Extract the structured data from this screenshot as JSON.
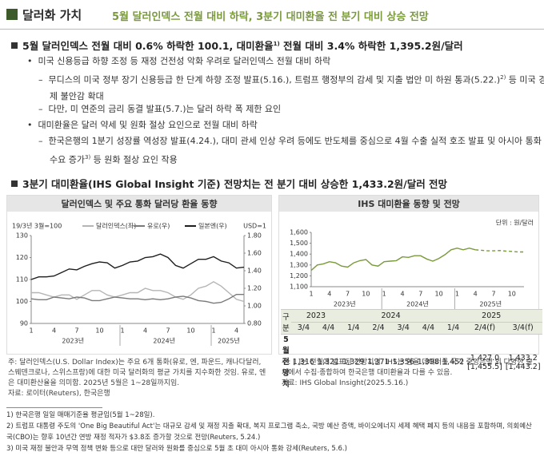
{
  "header": {
    "section": "달러화 가치",
    "title": "5월 달러인덱스 전월 대비 하락, 3분기 대미환율 전 분기 대비 상승 전망"
  },
  "body": {
    "heading1": {
      "text": "5월 달러인덱스 전월 대비 0.6% 하락한 100.1, 대미환율",
      "note": "1)",
      "rest": " 전월 대비 3.4% 하락한 1,395.2원/달러"
    },
    "bullets": [
      {
        "text": "미국 신용등급 하향 조정 등 재정 건전성 악화 우려로 달러인덱스 전월 대비 하락",
        "subs": [
          {
            "text": "무디스의 미국 정부 장기 신용등급 한 단계 하향 조정 발표(5.16.), 트럼프 행정부의 감세 및 지출 법안 미 하원 통과(5.22.)",
            "note": "2)",
            "rest": " 등 미국 경제 불안감 확대"
          },
          {
            "text": "다만, 미 연준의 금리 동결 발표(5.7.)는 달러 하락 폭 제한 요인"
          }
        ]
      },
      {
        "text": "대미환율은 달러 약세 및 원화 절상 요인으로 전월 대비 하락",
        "subs": [
          {
            "text": "한국은행의 1분기 성장률 역성장 발표(4.24.), 대미 관세 인상 우려 등에도 반도체를 중심으로 4월 수출 실적 호조 발표 및 아시아 통화 수요 증가",
            "note": "3)",
            "rest": " 등 원화 절상 요인 작용"
          }
        ]
      }
    ],
    "heading2": "3분기 대미환율(IHS Global Insight 기준) 전망치는 전 분기 대비 상승한 1,433.2원/달러 전망"
  },
  "chart_data": [
    {
      "type": "line",
      "title": "달러인덱스 및 주요 통화 달러당 환율 동향",
      "index_note": "19/3년 3월=100",
      "unit_note": "USD=1",
      "categories": [
        "1",
        null,
        null,
        "4",
        null,
        null,
        "7",
        null,
        null,
        "10",
        null,
        null,
        "1",
        null,
        null,
        "4",
        null,
        null,
        "7",
        null,
        null,
        "10",
        null,
        null,
        "1",
        null,
        null,
        "4",
        null
      ],
      "year_labels": [
        "2023년",
        "2024년",
        "2025년"
      ],
      "ylim": [
        90,
        130
      ],
      "yticks": [
        90,
        100,
        110,
        120,
        130
      ],
      "y2lim": [
        0.8,
        1.8
      ],
      "y2ticks": [
        {
          "value": 0.8,
          "label": "0.80"
        },
        {
          "value": 1.0,
          "label": "1.00"
        },
        {
          "value": 1.2,
          "label": "1.20"
        },
        {
          "value": 1.4,
          "label": "1.40"
        },
        {
          "value": 1.6,
          "label": "1.60"
        },
        {
          "value": 1.8,
          "label": "1.80"
        }
      ],
      "grid": false,
      "series": [
        {
          "name": "달러인덱스(좌)",
          "color": "#b5b5b5",
          "values": [
            104,
            104,
            103,
            102,
            103,
            103,
            101,
            103,
            105,
            105,
            103,
            102,
            103,
            104,
            104,
            106,
            105,
            105,
            104,
            102,
            101,
            103,
            106,
            107,
            109,
            107,
            104,
            101,
            100
          ]
        },
        {
          "name": "유로(우)",
          "color": "#7a7a7a",
          "axis": "y2",
          "values": [
            1.08,
            1.07,
            1.07,
            1.1,
            1.09,
            1.08,
            1.1,
            1.09,
            1.06,
            1.06,
            1.08,
            1.1,
            1.09,
            1.08,
            1.08,
            1.07,
            1.08,
            1.07,
            1.08,
            1.1,
            1.11,
            1.09,
            1.06,
            1.05,
            1.03,
            1.04,
            1.08,
            1.13,
            1.13
          ]
        },
        {
          "name": "일본엔(우)",
          "color": "#1e1e1e",
          "axis": "y2",
          "values": [
            1.3,
            1.33,
            1.33,
            1.34,
            1.38,
            1.42,
            1.41,
            1.45,
            1.48,
            1.5,
            1.49,
            1.43,
            1.46,
            1.5,
            1.51,
            1.55,
            1.56,
            1.59,
            1.55,
            1.46,
            1.43,
            1.48,
            1.53,
            1.53,
            1.56,
            1.51,
            1.49,
            1.43,
            1.44
          ]
        }
      ]
    },
    {
      "type": "line",
      "title": "IHS 대미환율 동향 및 전망",
      "unit_note": "단위 : 원/달러",
      "categories": [
        "1",
        null,
        null,
        "4",
        null,
        null,
        "7",
        null,
        null,
        "10",
        null,
        null,
        "1",
        null,
        null,
        "4",
        null,
        null,
        "7",
        null,
        null,
        "10",
        null,
        null,
        "1",
        null,
        null,
        "4",
        null,
        null,
        "7",
        null,
        null,
        "10",
        null,
        null
      ],
      "year_labels": [
        "2023년",
        "2024년",
        "2025년"
      ],
      "ylim": [
        1100,
        1600
      ],
      "yticks": [
        {
          "value": 1100,
          "label": "1,100"
        },
        {
          "value": 1200,
          "label": "1,200"
        },
        {
          "value": 1300,
          "label": "1,300"
        },
        {
          "value": 1400,
          "label": "1,400"
        },
        {
          "value": 1500,
          "label": "1,500"
        },
        {
          "value": 1600,
          "label": "1,600"
        }
      ],
      "grid": false,
      "series": [
        {
          "color": "#7a9a3c",
          "values": [
            1250,
            1300,
            1310,
            1330,
            1320,
            1290,
            1280,
            1320,
            1340,
            1350,
            1300,
            1290,
            1330,
            1335,
            1340,
            1375,
            1370,
            1385,
            1385,
            1355,
            1335,
            1360,
            1395,
            1440,
            1455,
            1440,
            1455,
            1440,
            null,
            null,
            null,
            null,
            null,
            null,
            null,
            null
          ]
        },
        {
          "color": "#7a9a3c",
          "dashed": true,
          "values": [
            null,
            null,
            null,
            null,
            null,
            null,
            null,
            null,
            null,
            null,
            null,
            null,
            null,
            null,
            null,
            null,
            null,
            null,
            null,
            null,
            null,
            null,
            null,
            null,
            null,
            null,
            null,
            1440,
            1435,
            1430,
            1430,
            1433,
            1428,
            1425,
            1420,
            1420
          ]
        }
      ]
    }
  ],
  "table": {
    "corner": "구분",
    "years": [
      "2023",
      "2024",
      "2025"
    ],
    "quarters": [
      "3/4",
      "4/4",
      "1/4",
      "2/4",
      "3/4",
      "4/4",
      "1/4",
      "2/4(f)",
      "3/4(f)"
    ],
    "row_label": "5월 전망치",
    "cells": [
      "1,316",
      "1,321",
      "1,329",
      "1,371",
      "1,356",
      "1,398",
      "1,452",
      "1,427.0",
      "1,433.2"
    ],
    "brackets": [
      "[1,455.5]",
      "[1,443.2]"
    ]
  },
  "notes": {
    "left": [
      "주: 달러인덱스(U.S. Dollar Index)는 주요 6개 통화(유로, 엔, 파운드, 캐나다달러, 스웨덴크로나, 스위스프랑)에 대한 미국 달러화의 평균 가치를 지수화한 것임. 유로, 엔은 대미환산율을 의미함. 2025년 5월은 1~28일까지임.",
      "자료: 로이터(Reuters), 한국은행"
    ],
    "right": [
      "주: [ ]는 전월에 발표된 전망치임. IHS는 환율 데이터를 국가 중앙은행 외 다양한 출처에서 수집·종합하여 한국은행 대미환율과 다를 수 있음.",
      "자료: IHS Global Insight(2025.5.16.)"
    ]
  },
  "footnotes": [
    "1) 한국은행 일일 매매기준율 평균임(5월 1~28일).",
    "2) 트럼프 대통령 주도의 'One Big Beautiful Act'는 대규모 감세 및 재정 지출 확대, 복지 프로그램 축소, 국방 예산 증액, 바이오에너지 세제 혜택 폐지 등의 내용을 포함하며, 의회예산국(CBO)는 향후 10년간 연방 재정 적자가 $3.8조 증가할 것으로 전망(Reuters, 5.24.)",
    "3) 미국 재정 불안과 무역 정책 변화 등으로 대만 달러와 원화를 중심으로 5월 초 대미 아시아 통화 강세(Reuters, 5.6.)"
  ]
}
